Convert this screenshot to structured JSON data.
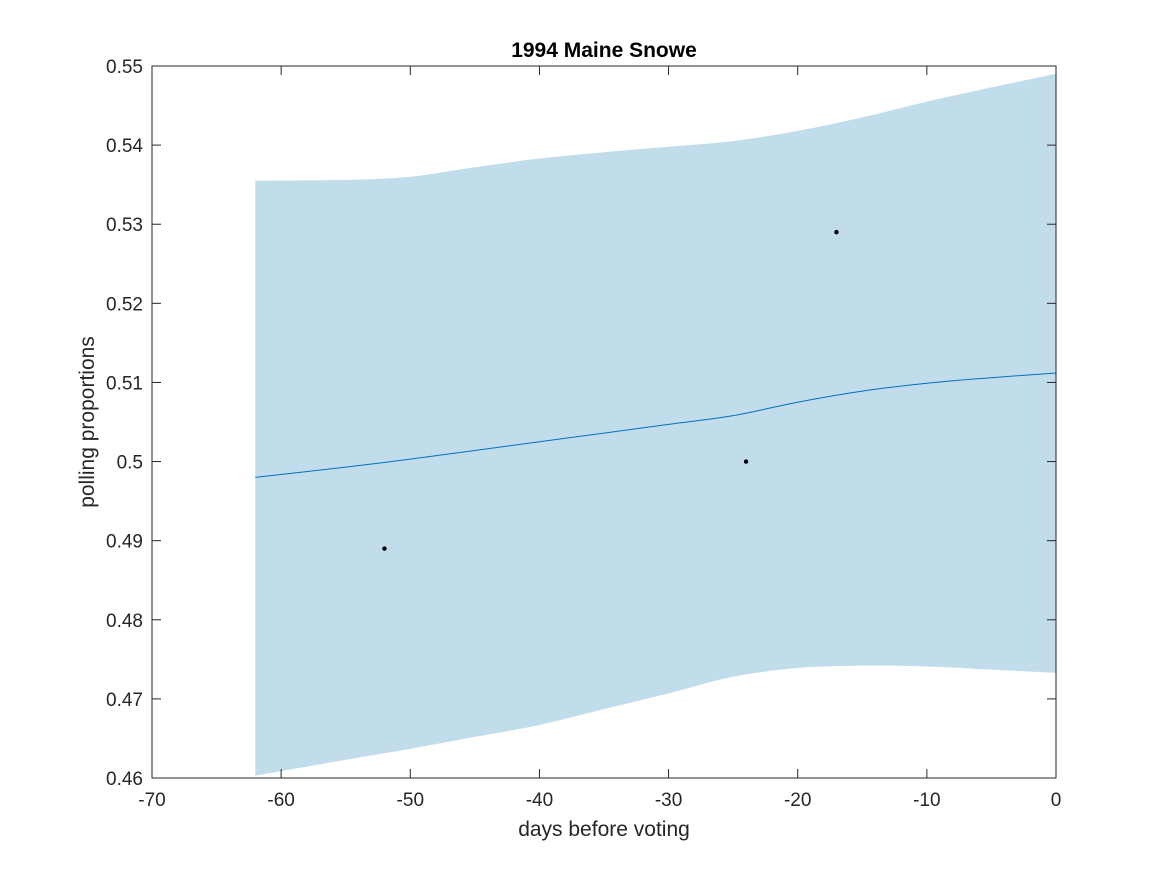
{
  "chart_data": {
    "type": "line",
    "title": "1994 Maine Snowe",
    "xlabel": "days before voting",
    "ylabel": "polling proportions",
    "xlim": [
      -70,
      0
    ],
    "ylim": [
      0.46,
      0.55
    ],
    "xticks": [
      -70,
      -60,
      -50,
      -40,
      -30,
      -20,
      -10,
      0
    ],
    "xtick_labels": [
      "-70",
      "-60",
      "-50",
      "-40",
      "-30",
      "-20",
      "-10",
      "0"
    ],
    "yticks": [
      0.46,
      0.47,
      0.48,
      0.49,
      0.5,
      0.51,
      0.52,
      0.53,
      0.54,
      0.55
    ],
    "ytick_labels": [
      "0.46",
      "0.47",
      "0.48",
      "0.49",
      "0.5",
      "0.51",
      "0.52",
      "0.53",
      "0.54",
      "0.55"
    ],
    "grid": false,
    "series": [
      {
        "kind": "band",
        "color": "#c1dcea",
        "x": [
          -62,
          -55,
          -50,
          -45,
          -40,
          -35,
          -30,
          -25,
          -20,
          -15,
          -10,
          -5,
          0
        ],
        "upper": [
          0.5355,
          0.5356,
          0.536,
          0.5372,
          0.5383,
          0.5391,
          0.5398,
          0.5405,
          0.5418,
          0.5435,
          0.5455,
          0.5473,
          0.549
        ],
        "lower": [
          0.4603,
          0.4623,
          0.4637,
          0.4652,
          0.4667,
          0.4687,
          0.4707,
          0.4728,
          0.4739,
          0.4742,
          0.4741,
          0.4737,
          0.4733
        ]
      },
      {
        "kind": "line",
        "color": "#0072bd",
        "x": [
          -62,
          -55,
          -50,
          -45,
          -40,
          -35,
          -30,
          -25,
          -20,
          -15,
          -10,
          -5,
          0
        ],
        "y": [
          0.498,
          0.4993,
          0.5003,
          0.5014,
          0.5025,
          0.5036,
          0.5047,
          0.5058,
          0.5075,
          0.5089,
          0.5099,
          0.5106,
          0.5112
        ]
      },
      {
        "kind": "scatter",
        "color": "#000000",
        "x": [
          -52,
          -24,
          -17
        ],
        "y": [
          0.489,
          0.5,
          0.529
        ]
      }
    ]
  }
}
